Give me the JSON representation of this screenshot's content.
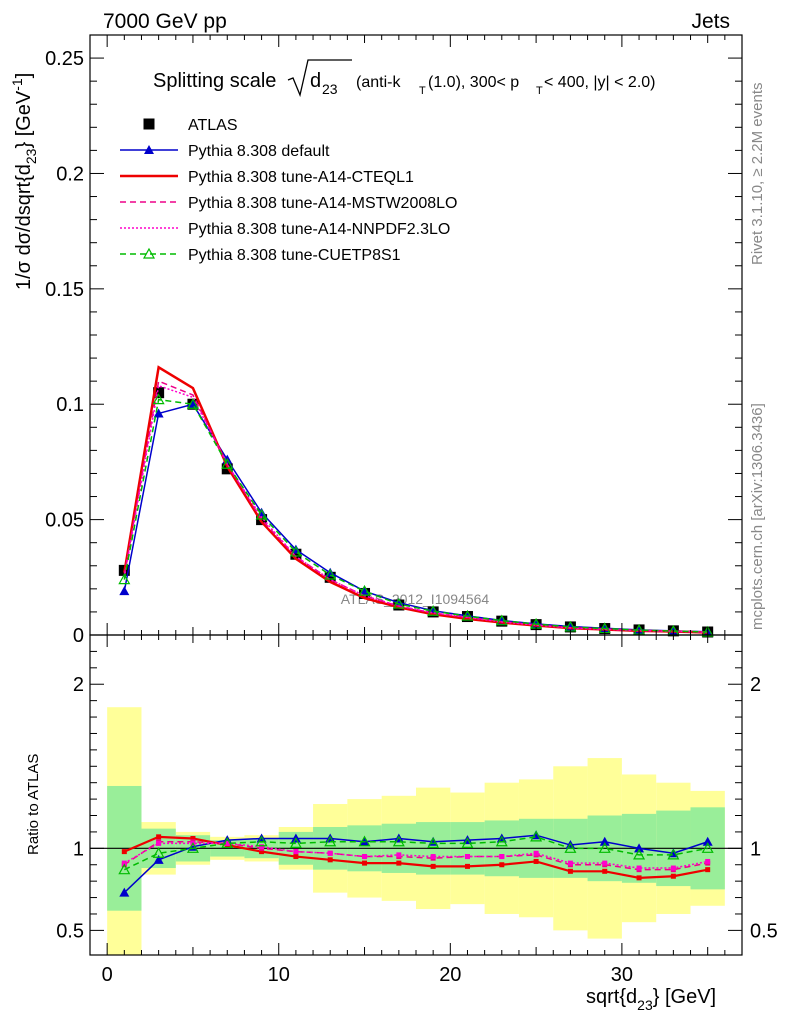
{
  "header": {
    "left": "7000 GeV pp",
    "right": "Jets"
  },
  "side_labels": {
    "rivet": "Rivet 3.1.10, ≥ 2.2M events",
    "mcplots": "mcplots.cern.ch [arXiv:1306.3436]"
  },
  "watermark": "ATLAS_2012_I1094564",
  "chart_data": [
    {
      "type": "line",
      "title": "Splitting scale",
      "title_sqrt": "d",
      "title_sqrt_sub": "23",
      "title_rest": "(anti-k",
      "title_rest_sub": "T",
      "title_rest2": "(1.0), 300< p",
      "title_rest2_sub": "T",
      "title_rest3": " < 400, |y| < 2.0)",
      "ylabel": "1/σ dσ/dsqrt{d",
      "ylabel_sub": "23",
      "ylabel_mid": "} [GeV",
      "ylabel_sup": "-1",
      "ylabel_end": "]",
      "xlim": [
        -1,
        37
      ],
      "ylim": [
        0,
        0.26
      ],
      "yticks": [
        "0",
        "0.05",
        "0.1",
        "0.15",
        "0.2",
        "0.25"
      ],
      "x": [
        1,
        3,
        5,
        7,
        9,
        11,
        13,
        15,
        17,
        19,
        21,
        23,
        25,
        27,
        29,
        31,
        33,
        35
      ],
      "legend_placement": "top-left",
      "series": [
        {
          "name": "ATLAS",
          "color": "#000000",
          "marker": "square",
          "line": "none",
          "values": [
            0.028,
            0.105,
            0.1,
            0.072,
            0.05,
            0.035,
            0.025,
            0.018,
            0.013,
            0.01,
            0.008,
            0.006,
            0.0045,
            0.0035,
            0.0028,
            0.0022,
            0.0018,
            0.0013
          ]
        },
        {
          "name": "Pythia 8.308 default",
          "color": "#0000cc",
          "marker": "triangle",
          "line": "solid",
          "values": [
            0.019,
            0.096,
            0.1,
            0.076,
            0.053,
            0.037,
            0.027,
            0.019,
            0.014,
            0.0105,
            0.0083,
            0.0063,
            0.0048,
            0.0037,
            0.0029,
            0.0022,
            0.0018,
            0.0014
          ]
        },
        {
          "name": "Pythia 8.308 tune-A14-CTEQL1",
          "color": "#ee0000",
          "marker": "none",
          "line": "solid",
          "values": [
            0.027,
            0.116,
            0.107,
            0.073,
            0.049,
            0.033,
            0.023,
            0.016,
            0.012,
            0.009,
            0.007,
            0.0054,
            0.0041,
            0.003,
            0.0024,
            0.0018,
            0.0015,
            0.0011
          ]
        },
        {
          "name": "Pythia 8.308 tune-A14-MSTW2008LO",
          "color": "#ee0088",
          "marker": "none",
          "line": "dashed",
          "values": [
            0.026,
            0.11,
            0.104,
            0.074,
            0.05,
            0.034,
            0.024,
            0.017,
            0.0125,
            0.0095,
            0.0077,
            0.0058,
            0.0044,
            0.0031,
            0.0025,
            0.0019,
            0.0016,
            0.0012
          ]
        },
        {
          "name": "Pythia 8.308 tune-A14-NNPDF2.3LO",
          "color": "#ff00cc",
          "marker": "none",
          "line": "dotted",
          "values": [
            0.025,
            0.108,
            0.103,
            0.074,
            0.051,
            0.034,
            0.024,
            0.017,
            0.0126,
            0.0096,
            0.0076,
            0.0057,
            0.0043,
            0.0031,
            0.0025,
            0.0019,
            0.0016,
            0.0012
          ]
        },
        {
          "name": "Pythia 8.308 tune-CUETP8S1",
          "color": "#00bb00",
          "marker": "open-triangle",
          "line": "dashed",
          "values": [
            0.024,
            0.102,
            0.1,
            0.074,
            0.052,
            0.036,
            0.026,
            0.019,
            0.0134,
            0.0103,
            0.0082,
            0.0062,
            0.0047,
            0.0035,
            0.0028,
            0.0021,
            0.0017,
            0.0013
          ]
        }
      ]
    },
    {
      "type": "line",
      "ylabel": "Ratio to ATLAS",
      "xlabel": "sqrt{d",
      "xlabel_sub": "23",
      "xlabel_end": "} [GeV]",
      "xlim": [
        -1,
        37
      ],
      "ylim": [
        0.35,
        2.3
      ],
      "yticks": [
        "0.5",
        "1",
        "2"
      ],
      "xticks": [
        "0",
        "10",
        "20",
        "30"
      ],
      "x": [
        1,
        3,
        5,
        7,
        9,
        11,
        13,
        15,
        17,
        19,
        21,
        23,
        25,
        27,
        29,
        31,
        33,
        35
      ],
      "bin_edges": [
        0,
        2,
        4,
        6,
        8,
        10,
        12,
        14,
        16,
        18,
        20,
        22,
        24,
        26,
        28,
        30,
        32,
        34,
        36
      ],
      "band_inner": {
        "color": "#99ee99",
        "lo": [
          0.62,
          0.88,
          0.92,
          0.95,
          0.94,
          0.9,
          0.87,
          0.86,
          0.85,
          0.84,
          0.84,
          0.83,
          0.82,
          0.82,
          0.8,
          0.79,
          0.77,
          0.75
        ],
        "hi": [
          1.38,
          1.12,
          1.08,
          1.05,
          1.06,
          1.1,
          1.13,
          1.14,
          1.15,
          1.16,
          1.16,
          1.17,
          1.18,
          1.18,
          1.2,
          1.21,
          1.23,
          1.25
        ]
      },
      "band_outer": {
        "color": "#ffff99",
        "lo": [
          0.35,
          0.84,
          0.9,
          0.93,
          0.92,
          0.87,
          0.73,
          0.7,
          0.68,
          0.63,
          0.66,
          0.6,
          0.58,
          0.5,
          0.45,
          0.55,
          0.6,
          0.65
        ],
        "hi": [
          1.86,
          1.16,
          1.1,
          1.07,
          1.08,
          1.13,
          1.27,
          1.3,
          1.32,
          1.37,
          1.34,
          1.4,
          1.42,
          1.5,
          1.55,
          1.45,
          1.4,
          1.35
        ]
      },
      "series": [
        {
          "name": "Pythia 8.308 default",
          "color": "#0000cc",
          "marker": "triangle",
          "line": "solid",
          "values": [
            0.73,
            0.93,
            1.01,
            1.05,
            1.06,
            1.06,
            1.06,
            1.04,
            1.06,
            1.04,
            1.05,
            1.06,
            1.08,
            1.02,
            1.04,
            1.0,
            0.97,
            1.04
          ]
        },
        {
          "name": "Pythia 8.308 tune-A14-CTEQL1",
          "color": "#ee0000",
          "marker": "small-square",
          "line": "solid",
          "values": [
            0.98,
            1.07,
            1.06,
            1.02,
            0.98,
            0.95,
            0.93,
            0.91,
            0.91,
            0.89,
            0.89,
            0.9,
            0.92,
            0.86,
            0.86,
            0.82,
            0.83,
            0.87
          ]
        },
        {
          "name": "Pythia 8.308 tune-A14-MSTW2008LO",
          "color": "#ee0088",
          "marker": "small-square",
          "line": "dashed",
          "values": [
            0.9,
            1.04,
            1.04,
            1.03,
            1.0,
            0.98,
            0.97,
            0.95,
            0.95,
            0.94,
            0.95,
            0.95,
            0.96,
            0.9,
            0.9,
            0.87,
            0.87,
            0.91
          ]
        },
        {
          "name": "Pythia 8.308 tune-A14-NNPDF2.3LO",
          "color": "#ff00cc",
          "marker": "small-square",
          "line": "dotted",
          "values": [
            0.91,
            1.03,
            1.03,
            1.03,
            1.01,
            0.98,
            0.97,
            0.95,
            0.96,
            0.95,
            0.95,
            0.95,
            0.97,
            0.91,
            0.91,
            0.88,
            0.88,
            0.92
          ]
        },
        {
          "name": "Pythia 8.308 tune-CUETP8S1",
          "color": "#00bb00",
          "marker": "open-triangle",
          "line": "dashed",
          "values": [
            0.87,
            0.97,
            1.0,
            1.03,
            1.04,
            1.03,
            1.04,
            1.04,
            1.04,
            1.03,
            1.03,
            1.04,
            1.07,
            1.0,
            1.0,
            0.96,
            0.96,
            1.0
          ]
        }
      ]
    }
  ]
}
